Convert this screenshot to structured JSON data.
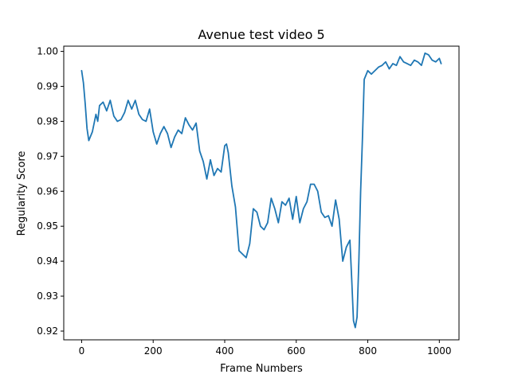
{
  "chart_data": {
    "type": "line",
    "title": "Avenue test video 5",
    "xlabel": "Frame Numbers",
    "ylabel": "Regularity Score",
    "xlim": [
      -50,
      1055
    ],
    "ylim": [
      0.9175,
      1.0015
    ],
    "xticks": [
      0,
      200,
      400,
      600,
      800,
      1000
    ],
    "xtick_labels": [
      "0",
      "200",
      "400",
      "600",
      "800",
      "1000"
    ],
    "yticks": [
      0.92,
      0.93,
      0.94,
      0.95,
      0.96,
      0.97,
      0.98,
      0.99,
      1.0
    ],
    "ytick_labels": [
      "0.92",
      "0.93",
      "0.94",
      "0.95",
      "0.96",
      "0.97",
      "0.98",
      "0.99",
      "1.00"
    ],
    "grid": false,
    "color": "#1f77b4",
    "series": [
      {
        "x": [
          0,
          5,
          10,
          15,
          20,
          30,
          40,
          45,
          50,
          60,
          70,
          80,
          90,
          100,
          110,
          120,
          130,
          140,
          150,
          160,
          170,
          180,
          190,
          200,
          210,
          220,
          230,
          240,
          250,
          260,
          270,
          280,
          290,
          300,
          310,
          320,
          330,
          340,
          350,
          360,
          370,
          380,
          390,
          400,
          405,
          410,
          420,
          430,
          440,
          450,
          460,
          470,
          480,
          490,
          500,
          510,
          520,
          530,
          540,
          550,
          560,
          570,
          580,
          590,
          600,
          610,
          620,
          630,
          640,
          650,
          660,
          670,
          680,
          690,
          700,
          710,
          720,
          730,
          740,
          750,
          755,
          760,
          765,
          770,
          775,
          780,
          785,
          790,
          800,
          810,
          820,
          830,
          840,
          850,
          860,
          870,
          880,
          890,
          900,
          910,
          920,
          930,
          940,
          950,
          960,
          970,
          980,
          990,
          1000,
          1005
        ],
        "y": [
          0.9945,
          0.991,
          0.985,
          0.978,
          0.9745,
          0.977,
          0.982,
          0.98,
          0.9845,
          0.9855,
          0.983,
          0.986,
          0.9815,
          0.98,
          0.9805,
          0.9825,
          0.986,
          0.9835,
          0.986,
          0.982,
          0.9805,
          0.98,
          0.9835,
          0.977,
          0.9735,
          0.9765,
          0.9785,
          0.9765,
          0.9725,
          0.9755,
          0.9775,
          0.9765,
          0.981,
          0.979,
          0.9775,
          0.9795,
          0.9715,
          0.9685,
          0.9635,
          0.969,
          0.9645,
          0.9665,
          0.9655,
          0.973,
          0.9735,
          0.971,
          0.9615,
          0.9555,
          0.943,
          0.942,
          0.941,
          0.945,
          0.955,
          0.954,
          0.95,
          0.949,
          0.951,
          0.958,
          0.955,
          0.951,
          0.957,
          0.956,
          0.958,
          0.952,
          0.9585,
          0.951,
          0.955,
          0.957,
          0.962,
          0.962,
          0.96,
          0.954,
          0.9525,
          0.953,
          0.95,
          0.9575,
          0.952,
          0.94,
          0.944,
          0.946,
          0.935,
          0.923,
          0.921,
          0.924,
          0.94,
          0.96,
          0.975,
          0.992,
          0.9945,
          0.9935,
          0.9945,
          0.9955,
          0.996,
          0.997,
          0.995,
          0.9965,
          0.996,
          0.9985,
          0.997,
          0.9965,
          0.996,
          0.9975,
          0.997,
          0.996,
          0.9995,
          0.999,
          0.9975,
          0.997,
          0.998,
          0.9965
        ]
      }
    ]
  }
}
